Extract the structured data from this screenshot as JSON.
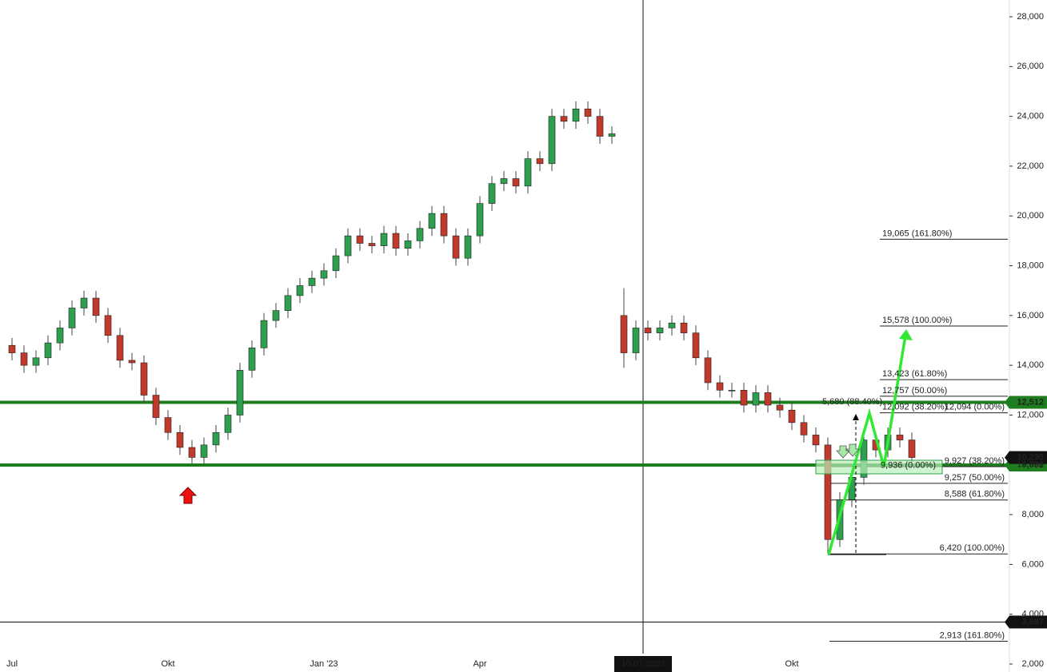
{
  "chart_data": {
    "type": "candlestick",
    "categories": [
      "Jul",
      null,
      null,
      null,
      null,
      null,
      null,
      null,
      null,
      null,
      null,
      null,
      null,
      "Okt",
      null,
      null,
      null,
      null,
      null,
      null,
      null,
      null,
      null,
      null,
      null,
      null,
      "Jan '23",
      null,
      null,
      null,
      null,
      null,
      null,
      null,
      null,
      null,
      null,
      null,
      null,
      "Apr",
      null,
      null,
      null,
      null,
      null,
      null,
      null,
      null,
      null,
      null,
      null,
      null,
      null,
      "10.07.2023",
      null,
      null,
      null,
      null,
      null,
      null,
      null,
      null,
      null,
      null,
      null,
      "Okt",
      null,
      null,
      null,
      null,
      null,
      null,
      null,
      null,
      null,
      null
    ],
    "open": [
      14800,
      14500,
      14000,
      14300,
      14900,
      15500,
      16300,
      16700,
      16000,
      15200,
      14200,
      14100,
      12800,
      11900,
      11300,
      10700,
      10300,
      10800,
      11300,
      12000,
      13800,
      14700,
      15800,
      16200,
      16800,
      17200,
      17500,
      17800,
      18400,
      19200,
      18900,
      18800,
      19300,
      18700,
      19000,
      19500,
      20100,
      19200,
      18300,
      19200,
      20500,
      21300,
      21500,
      21200,
      22300,
      22100,
      24000,
      23800,
      24300,
      24000,
      23200,
      16000,
      14500,
      15500,
      15300,
      15500,
      15700,
      15300,
      14300,
      13300,
      13000,
      13000,
      12400,
      12900,
      12400,
      12200,
      11700,
      11200,
      10800,
      7000,
      8600,
      9500,
      11000,
      10600,
      11200,
      11000
    ],
    "high": [
      15100,
      14800,
      14600,
      15200,
      15800,
      16600,
      17000,
      17000,
      16300,
      15500,
      14500,
      14400,
      13100,
      12200,
      11600,
      11000,
      11100,
      11600,
      12300,
      14100,
      15000,
      16100,
      16500,
      17100,
      17500,
      17800,
      18100,
      18700,
      19500,
      19500,
      19200,
      19600,
      19600,
      19300,
      19800,
      20400,
      20400,
      19500,
      19500,
      20800,
      21600,
      21800,
      21800,
      22600,
      22600,
      24300,
      24300,
      24600,
      24600,
      24300,
      23600,
      17100,
      15800,
      15800,
      15800,
      16000,
      16000,
      15600,
      14600,
      13600,
      13300,
      13300,
      13200,
      13200,
      12700,
      12500,
      12000,
      11500,
      11100,
      8900,
      9800,
      11300,
      11300,
      11500,
      11500,
      11300
    ],
    "low": [
      14200,
      13700,
      13700,
      14000,
      14600,
      15200,
      16000,
      15700,
      14900,
      13900,
      13800,
      12500,
      11600,
      11000,
      10400,
      10000,
      10000,
      10500,
      11000,
      11700,
      13500,
      14400,
      15500,
      15900,
      16500,
      16900,
      17200,
      17500,
      18100,
      18600,
      18500,
      18500,
      18400,
      18400,
      18700,
      19200,
      18900,
      18000,
      18000,
      18900,
      20200,
      21000,
      20900,
      20900,
      21800,
      21800,
      23500,
      23500,
      23700,
      22900,
      22900,
      13900,
      14200,
      15000,
      15000,
      15200,
      15000,
      14000,
      13000,
      12700,
      12700,
      12100,
      12100,
      12100,
      11900,
      11400,
      10900,
      10500,
      6420,
      6700,
      8300,
      9200,
      10300,
      10300,
      10700,
      9995
    ],
    "close": [
      14500,
      14000,
      14300,
      14900,
      15500,
      16300,
      16700,
      16000,
      15200,
      14200,
      14100,
      12800,
      11900,
      11300,
      10700,
      10300,
      10800,
      11300,
      12000,
      13800,
      14700,
      15800,
      16200,
      16800,
      17200,
      17500,
      17800,
      18400,
      19200,
      18900,
      18800,
      19300,
      18700,
      19000,
      19500,
      20100,
      19200,
      18300,
      19200,
      20500,
      21300,
      21500,
      21200,
      22300,
      22100,
      24000,
      23800,
      24300,
      24000,
      23200,
      23300,
      14500,
      15500,
      15300,
      15500,
      15700,
      15300,
      14300,
      13300,
      13000,
      13000,
      12400,
      12900,
      12400,
      12200,
      11700,
      11200,
      10800,
      7000,
      8600,
      9500,
      11000,
      10600,
      11200,
      11000,
      10295
    ],
    "up_color": "#2e9e4f",
    "down_color": "#c0392b",
    "ylim": [
      2000,
      28000
    ],
    "yticks": [
      {
        "value": 2000,
        "label": "2,000"
      },
      {
        "value": 4000,
        "label": "4,000"
      },
      {
        "value": 6000,
        "label": "6,000"
      },
      {
        "value": 8000,
        "label": "8,000"
      },
      {
        "value": 10000,
        "label": "10,000"
      },
      {
        "value": 12000,
        "label": "12,000"
      },
      {
        "value": 14000,
        "label": "14,000"
      },
      {
        "value": 16000,
        "label": "16,000"
      },
      {
        "value": 18000,
        "label": "18,000"
      },
      {
        "value": 20000,
        "label": "20,000"
      },
      {
        "value": 22000,
        "label": "22,000"
      },
      {
        "value": 24000,
        "label": "24,000"
      },
      {
        "value": 26000,
        "label": "26,000"
      },
      {
        "value": 28000,
        "label": "28,000"
      }
    ],
    "horizontal_lines": [
      {
        "value": 12512,
        "label": "12,512",
        "color": "#1e7d1e"
      },
      {
        "value": 9992,
        "label": "9,992",
        "color": "#1e7d1e"
      },
      {
        "value": 3687,
        "label": "3,687",
        "color": "#111111"
      }
    ],
    "last_price": {
      "value": 10295,
      "label": "10,295",
      "color": "#111111"
    },
    "fib_upper": [
      {
        "value": 19065,
        "label": "19,065 (161.80%)"
      },
      {
        "value": 15578,
        "label": "15,578 (100.00%)"
      },
      {
        "value": 13423,
        "label": "13,423 (61.80%)"
      },
      {
        "value": 12757,
        "label": "12,757 (50.00%)"
      },
      {
        "value": 12092,
        "label": "12,092 (38.20%)"
      }
    ],
    "fib_lower": [
      {
        "value": 9927,
        "label": "9,927 (38.20%)"
      },
      {
        "value": 9257,
        "label": "9,257 (50.00%)"
      },
      {
        "value": 8588,
        "label": "8,588 (61.80%)"
      },
      {
        "value": 6420,
        "label": "6,420 (100.00%)"
      },
      {
        "value": 2913,
        "label": "2,913 (161.80%)"
      }
    ],
    "fib_zero_upper": {
      "value": 12094,
      "label": "12,094 (0.00%)"
    },
    "fib_zero_lower": {
      "value": 9936,
      "label": "9,936 (0.00%)"
    },
    "measure": {
      "value": 5680,
      "label": "5,680 (88.40%)"
    }
  }
}
